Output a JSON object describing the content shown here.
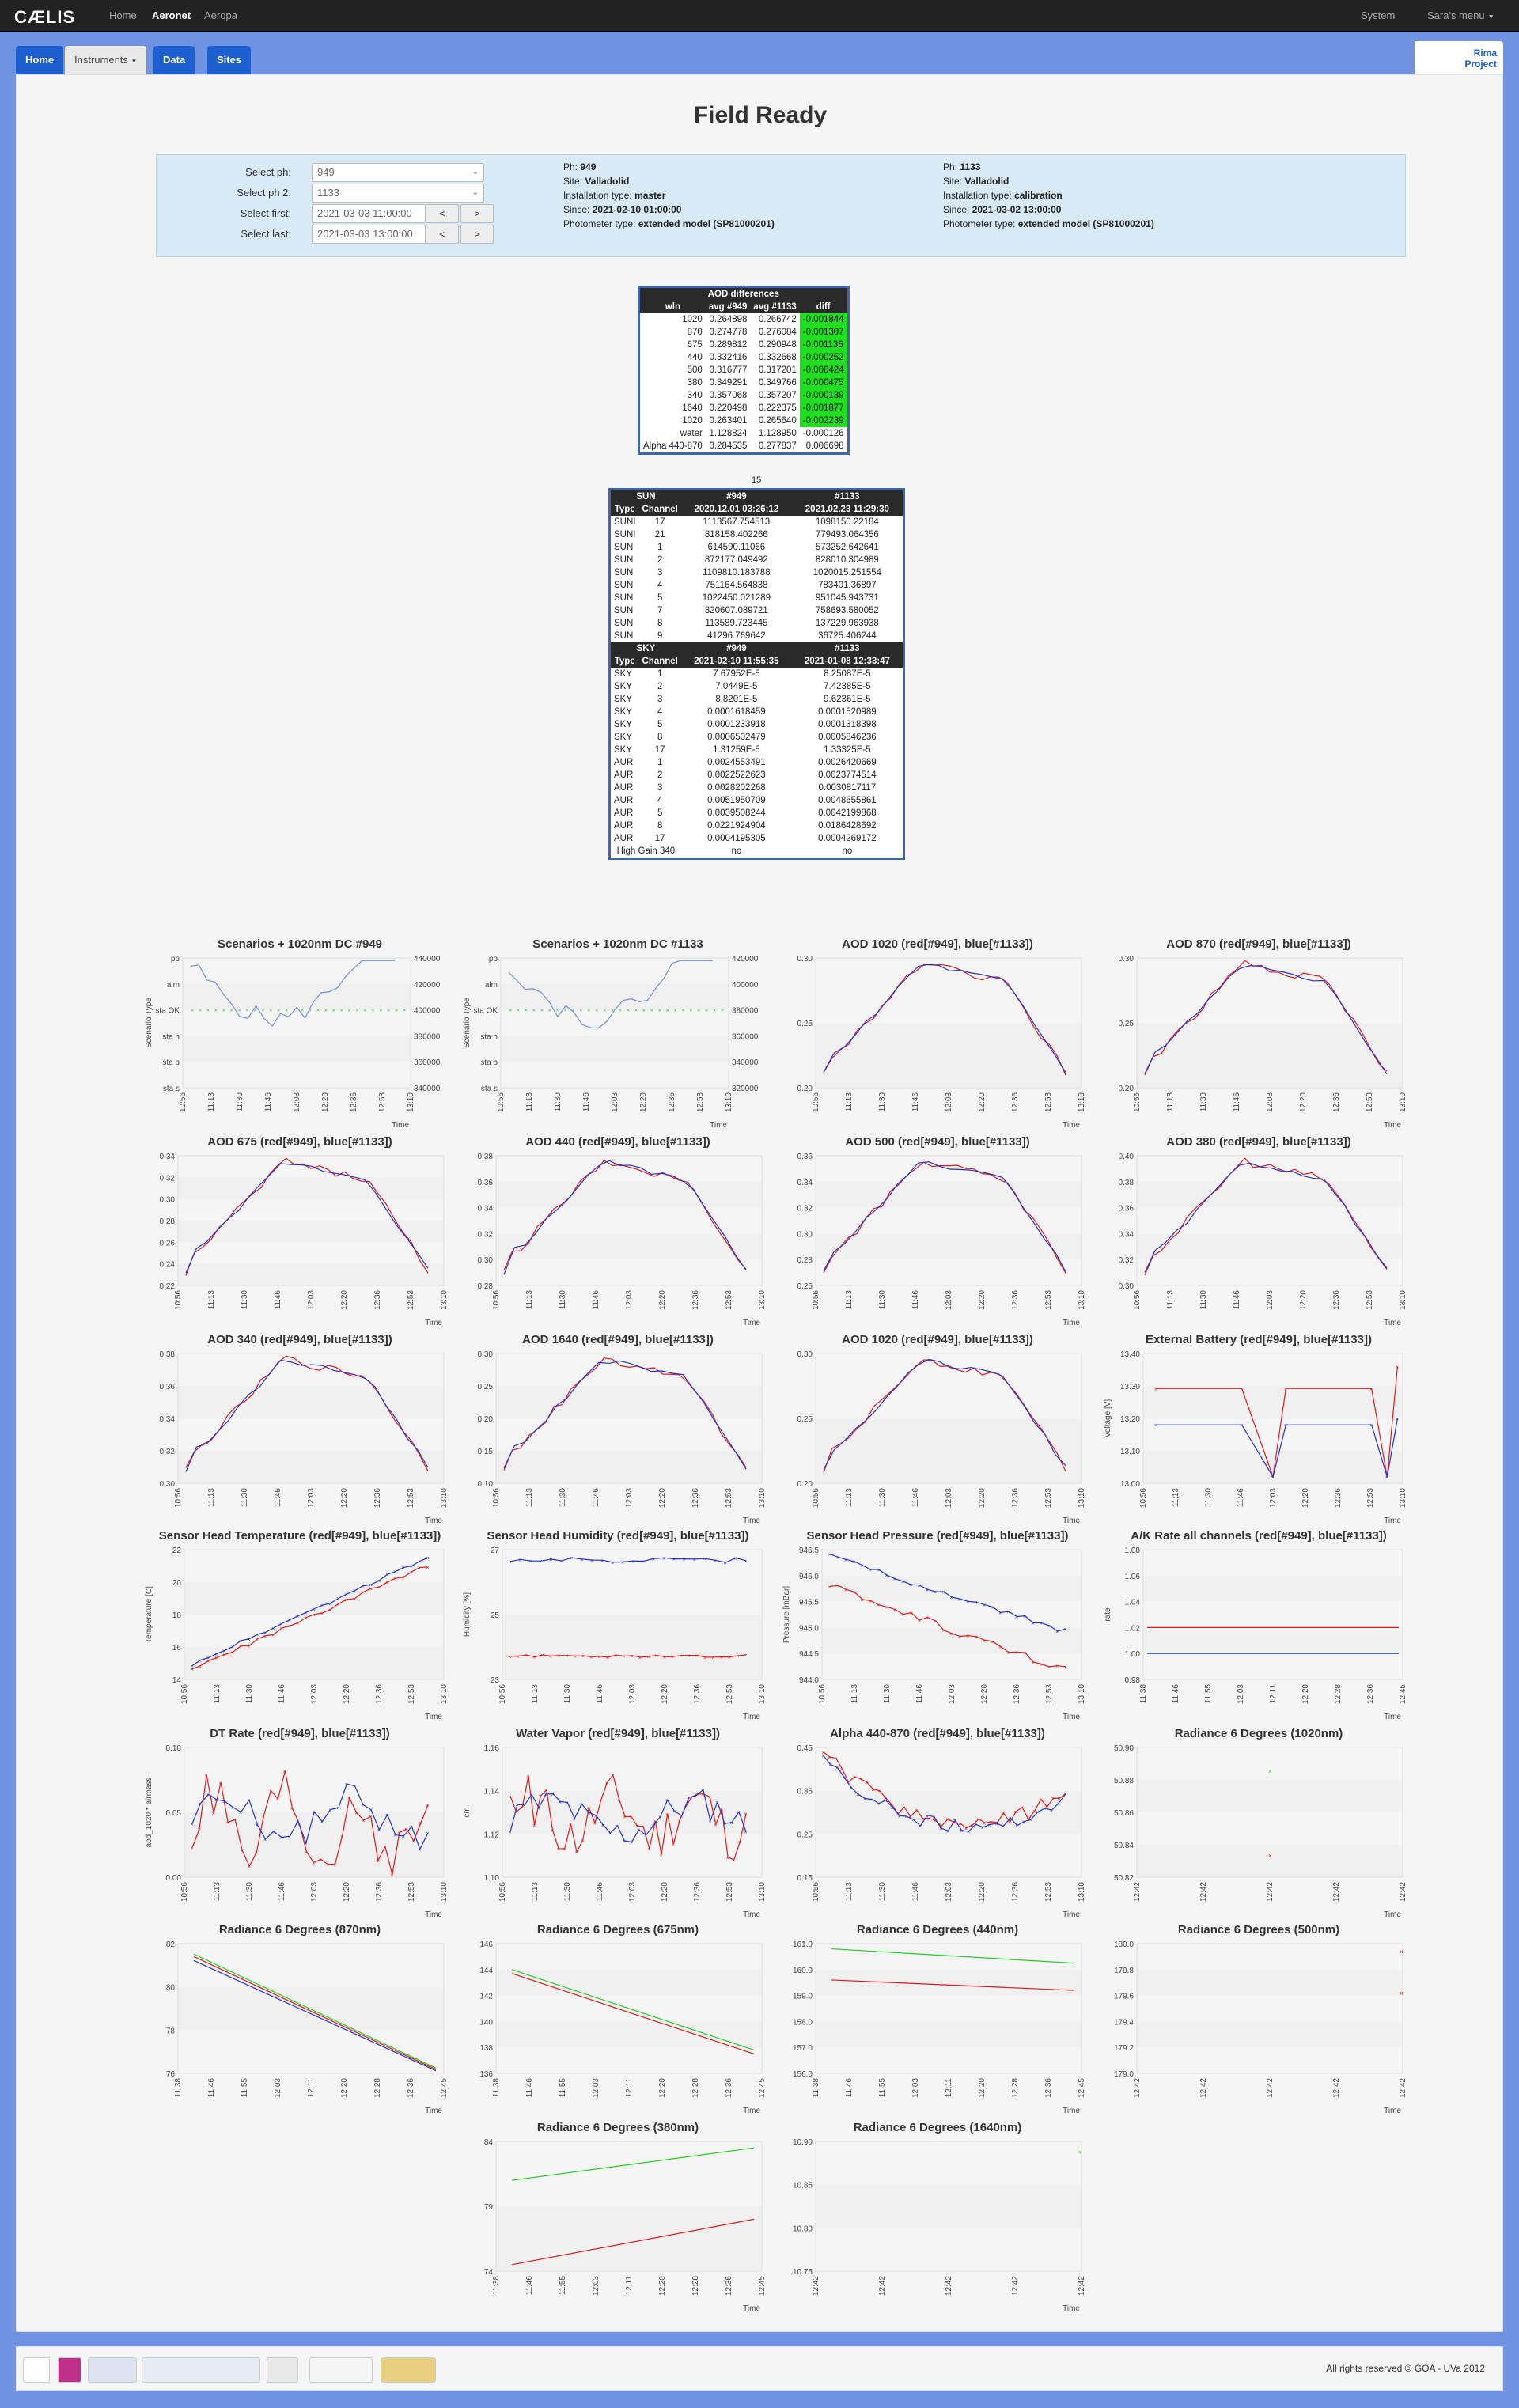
{
  "nav": {
    "brand": "CÆLIS",
    "home": "Home",
    "aeronet": "Aeronet",
    "aeropa": "Aeropa",
    "system": "System",
    "user_menu": "Sara's menu"
  },
  "tabs": {
    "home": "Home",
    "instruments": "Instruments",
    "data": "Data",
    "sites": "Sites"
  },
  "rima": {
    "line1": "Rima",
    "line2": "Project"
  },
  "page_title": "Field Ready",
  "selection": {
    "ph_label": "Select ph:",
    "ph_value": "949",
    "ph2_label": "Select ph 2:",
    "ph2_value": "1133",
    "first_label": "Select first:",
    "first_value": "2021-03-03 11:00:00",
    "last_label": "Select last:",
    "last_value": "2021-03-03 13:00:00",
    "prev": "<",
    "next": ">"
  },
  "ph1": {
    "ph_label": "Ph:",
    "ph": "949",
    "site_label": "Site:",
    "site": "Valladolid",
    "install_label": "Installation type:",
    "install": "master",
    "since_label": "Since:",
    "since": "2021-02-10 01:00:00",
    "type_label": "Photometer type:",
    "type": "extended model (SP81000201)"
  },
  "ph2": {
    "ph_label": "Ph:",
    "ph": "1133",
    "site_label": "Site:",
    "site": "Valladolid",
    "install_label": "Installation type:",
    "install": "calibration",
    "since_label": "Since:",
    "since": "2021-03-02 13:00:00",
    "type_label": "Photometer type:",
    "type": "extended model (SP81000201)"
  },
  "aod_table": {
    "title": "AOD differences",
    "headers": [
      "wln",
      "avg #949",
      "avg #1133",
      "diff"
    ],
    "rows": [
      [
        "1020",
        "0.264898",
        "0.266742",
        "-0.001844",
        true
      ],
      [
        "870",
        "0.274778",
        "0.276084",
        "-0.001307",
        true
      ],
      [
        "675",
        "0.289812",
        "0.290948",
        "-0.001136",
        true
      ],
      [
        "440",
        "0.332416",
        "0.332668",
        "-0.000252",
        true
      ],
      [
        "500",
        "0.316777",
        "0.317201",
        "-0.000424",
        true
      ],
      [
        "380",
        "0.349291",
        "0.349766",
        "-0.000475",
        true
      ],
      [
        "340",
        "0.357068",
        "0.357207",
        "-0.000139",
        true
      ],
      [
        "1640",
        "0.220498",
        "0.222375",
        "-0.001877",
        true
      ],
      [
        "1020",
        "0.263401",
        "0.265640",
        "-0.002239",
        true
      ],
      [
        "water",
        "1.128824",
        "1.128950",
        "-0.000126",
        false
      ],
      [
        "Alpha 440-870",
        "0.284535",
        "0.277837",
        "0.006698",
        false
      ]
    ],
    "count": "15"
  },
  "sun_table": {
    "head1": [
      "SUN",
      "#949",
      "#1133"
    ],
    "head2": [
      "Type",
      "Channel",
      "2020.12.01 03:26:12",
      "2021.02.23 11:29:30"
    ],
    "rows": [
      [
        "SUNI",
        "17",
        "1113567.754513",
        "1098150.22184"
      ],
      [
        "SUNI",
        "21",
        "818158.402266",
        "779493.064356"
      ],
      [
        "SUN",
        "1",
        "614590.11066",
        "573252.642641"
      ],
      [
        "SUN",
        "2",
        "872177.049492",
        "828010.304989"
      ],
      [
        "SUN",
        "3",
        "1109810.183788",
        "1020015.251554"
      ],
      [
        "SUN",
        "4",
        "751164.564838",
        "783401.36897"
      ],
      [
        "SUN",
        "5",
        "1022450.021289",
        "951045.943731"
      ],
      [
        "SUN",
        "7",
        "820607.089721",
        "758693.580052"
      ],
      [
        "SUN",
        "8",
        "113589.723445",
        "137229.963938"
      ],
      [
        "SUN",
        "9",
        "41296.769642",
        "36725.406244"
      ]
    ],
    "sky_head1": [
      "SKY",
      "#949",
      "#1133"
    ],
    "sky_head2": [
      "Type",
      "Channel",
      "2021-02-10 11:55:35",
      "2021-01-08 12:33:47"
    ],
    "sky_rows": [
      [
        "SKY",
        "1",
        "7.67952E-5",
        "8.25087E-5"
      ],
      [
        "SKY",
        "2",
        "7.0449E-5",
        "7.42385E-5"
      ],
      [
        "SKY",
        "3",
        "8.8201E-5",
        "9.62361E-5"
      ],
      [
        "SKY",
        "4",
        "0.0001618459",
        "0.0001520989"
      ],
      [
        "SKY",
        "5",
        "0.0001233918",
        "0.0001318398"
      ],
      [
        "SKY",
        "8",
        "0.0006502479",
        "0.0005846236"
      ],
      [
        "SKY",
        "17",
        "1.31259E-5",
        "1.33325E-5"
      ],
      [
        "AUR",
        "1",
        "0.0024553491",
        "0.0026420669"
      ],
      [
        "AUR",
        "2",
        "0.0022522623",
        "0.0023774514"
      ],
      [
        "AUR",
        "3",
        "0.0028202268",
        "0.0030817117"
      ],
      [
        "AUR",
        "4",
        "0.0051950709",
        "0.0048655861"
      ],
      [
        "AUR",
        "5",
        "0.0039508244",
        "0.0042199868"
      ],
      [
        "AUR",
        "8",
        "0.0221924904",
        "0.0186428692"
      ],
      [
        "AUR",
        "17",
        "0.0004195305",
        "0.0004269172"
      ]
    ],
    "gain_label": "High Gain 340",
    "gain_949": "no",
    "gain_1133": "no"
  },
  "colors": {
    "red": "#e0191a",
    "blue": "#2233cc",
    "green": "#22cc22",
    "navy": "#3f67a8"
  },
  "time_ticks_a": [
    "10:56",
    "11:13",
    "11:30",
    "11:46",
    "12:03",
    "12:20",
    "12:36",
    "12:53",
    "13:10"
  ],
  "time_ticks_b": [
    "11:38",
    "11:46",
    "11:55",
    "12:03",
    "12:11",
    "12:20",
    "12:28",
    "12:36",
    "12:45"
  ],
  "time_ticks_c": [
    "12:42",
    "12:42",
    "12:42",
    "12:42",
    "12:42"
  ],
  "xlabel": "Time",
  "charts": [
    {
      "title": "Scenarios + 1020nm DC #949",
      "type": "scenario",
      "yleft": [
        "pp",
        "alm",
        "sta OK",
        "sta h",
        "sta b",
        "sta s"
      ],
      "ylabel": "Scenario Type",
      "yright": [
        "440000",
        "420000",
        "400000",
        "380000",
        "360000",
        "340000"
      ],
      "ticks": "a"
    },
    {
      "title": "Scenarios + 1020nm DC #1133",
      "type": "scenario",
      "yleft": [
        "pp",
        "alm",
        "sta OK",
        "sta h",
        "sta b",
        "sta s"
      ],
      "ylabel": "Scenario Type",
      "yright": [
        "420000",
        "400000",
        "380000",
        "360000",
        "340000",
        "320000"
      ],
      "ticks": "a"
    },
    {
      "title": "AOD 1020 (red[#949], blue[#1133])",
      "type": "aod",
      "yticks": [
        "0.30",
        "0.25",
        "0.20"
      ],
      "ticks": "a"
    },
    {
      "title": "AOD 870 (red[#949], blue[#1133])",
      "type": "aod",
      "yticks": [
        "0.30",
        "0.25",
        "0.20"
      ],
      "ticks": "a"
    },
    {
      "title": "AOD 675 (red[#949], blue[#1133])",
      "type": "aod",
      "yticks": [
        "0.34",
        "0.32",
        "0.30",
        "0.28",
        "0.26",
        "0.24",
        "0.22"
      ],
      "ticks": "a"
    },
    {
      "title": "AOD 440 (red[#949], blue[#1133])",
      "type": "aod",
      "yticks": [
        "0.38",
        "0.36",
        "0.34",
        "0.32",
        "0.30",
        "0.28"
      ],
      "ticks": "a"
    },
    {
      "title": "AOD 500 (red[#949], blue[#1133])",
      "type": "aod",
      "yticks": [
        "0.36",
        "0.34",
        "0.32",
        "0.30",
        "0.28",
        "0.26"
      ],
      "ticks": "a"
    },
    {
      "title": "AOD 380 (red[#949], blue[#1133])",
      "type": "aod",
      "yticks": [
        "0.40",
        "0.38",
        "0.36",
        "0.34",
        "0.32",
        "0.30"
      ],
      "ticks": "a"
    },
    {
      "title": "AOD 340 (red[#949], blue[#1133])",
      "type": "aod",
      "yticks": [
        "0.38",
        "0.36",
        "0.34",
        "0.32",
        "0.30"
      ],
      "ticks": "a"
    },
    {
      "title": "AOD 1640 (red[#949], blue[#1133])",
      "type": "aod",
      "yticks": [
        "0.30",
        "0.25",
        "0.20",
        "0.15",
        "0.10"
      ],
      "ticks": "a"
    },
    {
      "title": "AOD 1020 (red[#949], blue[#1133])",
      "type": "aod",
      "yticks": [
        "0.30",
        "0.25",
        "0.20"
      ],
      "ticks": "a"
    },
    {
      "title": "External Battery (red[#949], blue[#1133])",
      "type": "battery",
      "yticks": [
        "13.40",
        "13.30",
        "13.20",
        "13.10",
        "13.00"
      ],
      "ylabel": "Voltage [V]",
      "ticks": "a"
    },
    {
      "title": "Sensor Head Temperature (red[#949], blue[#1133])",
      "type": "temp",
      "yticks": [
        "22",
        "20",
        "18",
        "16",
        "14"
      ],
      "ylabel": "Temperature [C]",
      "ticks": "a"
    },
    {
      "title": "Sensor Head Humidity (red[#949], blue[#1133])",
      "type": "hum",
      "yticks": [
        "27",
        "25",
        "23"
      ],
      "ylabel": "Humidity [%]",
      "ticks": "a"
    },
    {
      "title": "Sensor Head Pressure (red[#949], blue[#1133])",
      "type": "press",
      "yticks": [
        "946.5",
        "946.0",
        "945.5",
        "945.0",
        "944.5",
        "944.0"
      ],
      "ylabel": "Pressure [mBar]",
      "ticks": "a"
    },
    {
      "title": "A/K Rate all channels (red[#949], blue[#1133])",
      "type": "akrate",
      "yticks": [
        "1.08",
        "1.06",
        "1.04",
        "1.02",
        "1.00",
        "0.98"
      ],
      "ylabel": "rate",
      "ticks": "b"
    },
    {
      "title": "DT Rate (red[#949], blue[#1133])",
      "type": "dt",
      "yticks": [
        "0.10",
        "0.05",
        "0.00"
      ],
      "ylabel": "aod_1020 * airmass",
      "ticks": "a"
    },
    {
      "title": "Water Vapor (red[#949], blue[#1133])",
      "type": "wv",
      "yticks": [
        "1.16",
        "1.14",
        "1.12",
        "1.10"
      ],
      "ylabel": "cm",
      "ticks": "a"
    },
    {
      "title": "Alpha 440-870 (red[#949], blue[#1133])",
      "type": "alpha",
      "yticks": [
        "0.45",
        "0.35",
        "0.25",
        "0.15"
      ],
      "ticks": "a"
    },
    {
      "title": "Radiance 6 Degrees (1020nm)",
      "type": "rad1020",
      "yticks": [
        "50.90",
        "50.88",
        "50.86",
        "50.84",
        "50.82"
      ],
      "ticks": "c"
    },
    {
      "title": "Radiance 6 Degrees (870nm)",
      "type": "rad870",
      "yticks": [
        "82",
        "80",
        "78",
        "76"
      ],
      "ticks": "b"
    },
    {
      "title": "Radiance 6 Degrees (675nm)",
      "type": "rad675",
      "yticks": [
        "146",
        "144",
        "142",
        "140",
        "138",
        "136"
      ],
      "ticks": "b"
    },
    {
      "title": "Radiance 6 Degrees (440nm)",
      "type": "rad440",
      "yticks": [
        "161.0",
        "160.0",
        "159.0",
        "158.0",
        "157.0",
        "156.0"
      ],
      "ticks": "b"
    },
    {
      "title": "Radiance 6 Degrees (500nm)",
      "type": "rad500",
      "yticks": [
        "180.0",
        "179.8",
        "179.6",
        "179.4",
        "179.2",
        "179.0"
      ],
      "ticks": "c"
    },
    {
      "title": "Radiance 6 Degrees (380nm)",
      "type": "rad380",
      "yticks": [
        "84",
        "79",
        "74"
      ],
      "ticks": "b"
    },
    {
      "title": "Radiance 6 Degrees (1640nm)",
      "type": "rad1640",
      "yticks": [
        "10.90",
        "10.85",
        "10.80",
        "10.75"
      ],
      "ticks": "c"
    }
  ],
  "footer": {
    "logos": [
      "uva-logo",
      "uva-badge",
      "rima-logo",
      "aeronet-logo",
      "goa-logo",
      "actris-logo",
      "spain-logo"
    ],
    "copyright": "All rights reserved © GOA - UVa 2012"
  }
}
